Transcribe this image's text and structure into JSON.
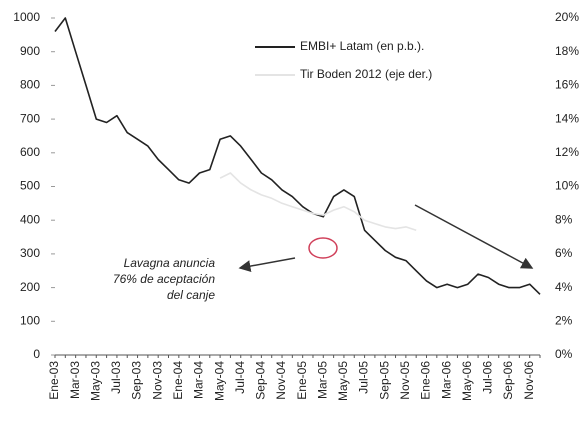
{
  "chart_data": {
    "type": "line",
    "categories": [
      "Ene-03",
      null,
      "Mar-03",
      null,
      "May-03",
      null,
      "Jul-03",
      null,
      "Sep-03",
      null,
      "Nov-03",
      null,
      "Ene-04",
      null,
      "Mar-04",
      null,
      "May-04",
      null,
      "Jul-04",
      null,
      "Sep-04",
      null,
      "Nov-04",
      null,
      "Ene-05",
      null,
      "Mar-05",
      null,
      "May-05",
      null,
      "Jul-05",
      null,
      "Sep-05",
      null,
      "Nov-05",
      null,
      "Ene-06",
      null,
      "Mar-06",
      null,
      "May-06",
      null,
      "Jul-06",
      null,
      "Sep-06",
      null,
      "Nov-06",
      null
    ],
    "series": [
      {
        "name": "EMBI+ Latam (en p.b.).",
        "color": "#222222",
        "values": [
          960,
          1000,
          900,
          800,
          700,
          690,
          710,
          660,
          640,
          620,
          580,
          550,
          520,
          510,
          540,
          550,
          640,
          650,
          620,
          580,
          540,
          520,
          490,
          470,
          440,
          420,
          410,
          470,
          490,
          470,
          370,
          340,
          310,
          290,
          280,
          250,
          220,
          200,
          210,
          200,
          210,
          240,
          230,
          210,
          200,
          200,
          210,
          180
        ]
      },
      {
        "name": "Tir Boden 2012 (eje der.)",
        "color": "#e4e4e4",
        "axis": "y2",
        "values": [
          null,
          null,
          null,
          null,
          null,
          null,
          null,
          null,
          null,
          null,
          null,
          null,
          null,
          null,
          null,
          null,
          10.5,
          10.8,
          10.2,
          9.8,
          9.5,
          9.3,
          9.0,
          8.8,
          8.6,
          8.4,
          8.3,
          8.6,
          8.8,
          8.5,
          8.0,
          7.8,
          7.6,
          7.5,
          7.6,
          7.4,
          null,
          null,
          null,
          null,
          null,
          null,
          null,
          null,
          null,
          null,
          null,
          null
        ]
      }
    ],
    "ylim": [
      0,
      1000
    ],
    "yticks": [
      0,
      100,
      200,
      300,
      400,
      500,
      600,
      700,
      800,
      900,
      1000
    ],
    "y2lim": [
      0,
      20
    ],
    "y2ticks": [
      {
        "value": 0,
        "label": "0%"
      },
      {
        "value": 2,
        "label": "2%"
      },
      {
        "value": 4,
        "label": "4%"
      },
      {
        "value": 6,
        "label": "6%"
      },
      {
        "value": 8,
        "label": "8%"
      },
      {
        "value": 10,
        "label": "10%"
      },
      {
        "value": 12,
        "label": "12%"
      },
      {
        "value": 14,
        "label": "14%"
      },
      {
        "value": 16,
        "label": "16%"
      },
      {
        "value": 18,
        "label": "18%"
      },
      {
        "value": 20,
        "label": "20%"
      }
    ],
    "annotation": [
      "Lavagna anuncia",
      "76% de aceptación",
      "del canje"
    ],
    "grid": false
  }
}
